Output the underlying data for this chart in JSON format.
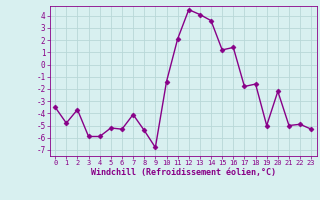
{
  "x": [
    0,
    1,
    2,
    3,
    4,
    5,
    6,
    7,
    8,
    9,
    10,
    11,
    12,
    13,
    14,
    15,
    16,
    17,
    18,
    19,
    20,
    21,
    22,
    23
  ],
  "y": [
    -3.5,
    -4.8,
    -3.7,
    -5.9,
    -5.9,
    -5.2,
    -5.3,
    -4.1,
    -5.4,
    -6.8,
    -1.4,
    2.1,
    4.5,
    4.1,
    3.6,
    1.2,
    1.4,
    -1.8,
    -1.6,
    -5.0,
    -2.2,
    -5.0,
    -4.9,
    -5.3
  ],
  "line_color": "#880088",
  "marker": "D",
  "marker_size": 2.5,
  "bg_color": "#d8f0f0",
  "grid_color": "#b8d8d8",
  "xlabel": "Windchill (Refroidissement éolien,°C)",
  "xlabel_color": "#880088",
  "tick_color": "#880088",
  "ylim": [
    -7.5,
    4.8
  ],
  "xlim": [
    -0.5,
    23.5
  ],
  "yticks": [
    -7,
    -6,
    -5,
    -4,
    -3,
    -2,
    -1,
    0,
    1,
    2,
    3,
    4
  ],
  "xticks": [
    0,
    1,
    2,
    3,
    4,
    5,
    6,
    7,
    8,
    9,
    10,
    11,
    12,
    13,
    14,
    15,
    16,
    17,
    18,
    19,
    20,
    21,
    22,
    23
  ],
  "line_width": 1.0
}
